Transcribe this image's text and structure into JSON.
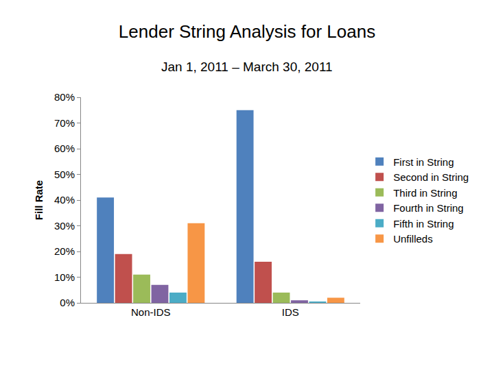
{
  "chart_data": {
    "type": "bar",
    "title": "Lender String Analysis for Loans",
    "subtitle": "Jan 1, 2011 – March 30, 2011",
    "y_label": "Fill Rate",
    "categories": [
      "Non-IDS",
      "IDS"
    ],
    "series": [
      {
        "name": "First in String",
        "color": "#4f81bd",
        "values": [
          41,
          75
        ]
      },
      {
        "name": "Second in String",
        "color": "#c0504d",
        "values": [
          19,
          16
        ]
      },
      {
        "name": "Third in String",
        "color": "#9bbb59",
        "values": [
          11,
          4
        ]
      },
      {
        "name": "Fourth in String",
        "color": "#8064a2",
        "values": [
          7,
          1
        ]
      },
      {
        "name": "Fifth in String",
        "color": "#4bacc6",
        "values": [
          4,
          0.5
        ]
      },
      {
        "name": "Unfilleds",
        "color": "#f79646",
        "values": [
          31,
          2
        ]
      }
    ],
    "ylim": [
      0,
      80
    ],
    "yticks": [
      {
        "value": 0,
        "label": "0%"
      },
      {
        "value": 10,
        "label": "10%"
      },
      {
        "value": 20,
        "label": "20%"
      },
      {
        "value": 30,
        "label": "30%"
      },
      {
        "value": 40,
        "label": "40%"
      },
      {
        "value": 50,
        "label": "50%"
      },
      {
        "value": 60,
        "label": "60%"
      },
      {
        "value": 70,
        "label": "70%"
      },
      {
        "value": 80,
        "label": "80%"
      }
    ],
    "grid": false,
    "legend": "right"
  }
}
